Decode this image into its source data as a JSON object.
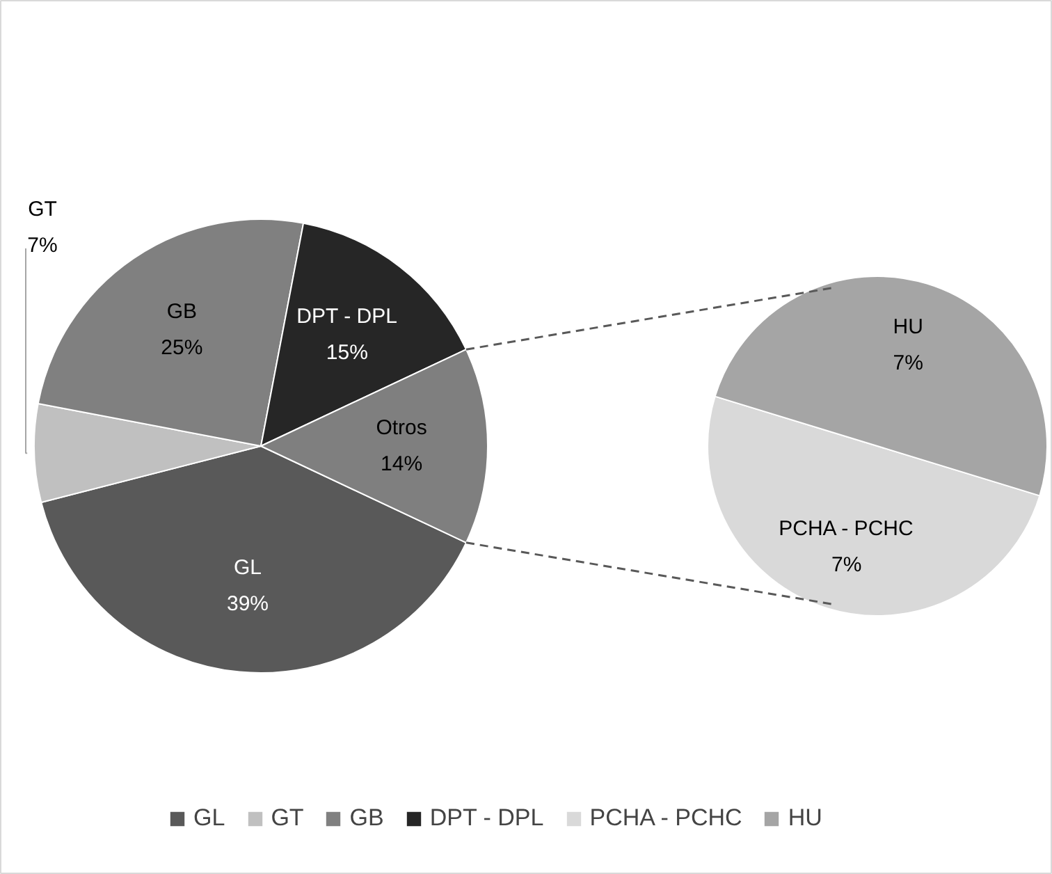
{
  "chart_data": [
    {
      "type": "pie",
      "categories": [
        "GL",
        "GT",
        "GB",
        "DPT - DPL",
        "Otros"
      ],
      "values": [
        39,
        7,
        25,
        15,
        14
      ],
      "value_labels": [
        "39%",
        "7%",
        "25%",
        "15%",
        "14%"
      ],
      "colors": [
        "#595959",
        "#c0c0c0",
        "#808080",
        "#262626",
        "#7f7f7f"
      ],
      "legend": "bottom"
    },
    {
      "type": "pie",
      "categories": [
        "PCHA - PCHC",
        "HU"
      ],
      "values": [
        7,
        7
      ],
      "value_labels": [
        "7%",
        "7%"
      ],
      "colors": [
        "#d9d9d9",
        "#a5a5a5"
      ],
      "legend": "bottom"
    }
  ]
}
